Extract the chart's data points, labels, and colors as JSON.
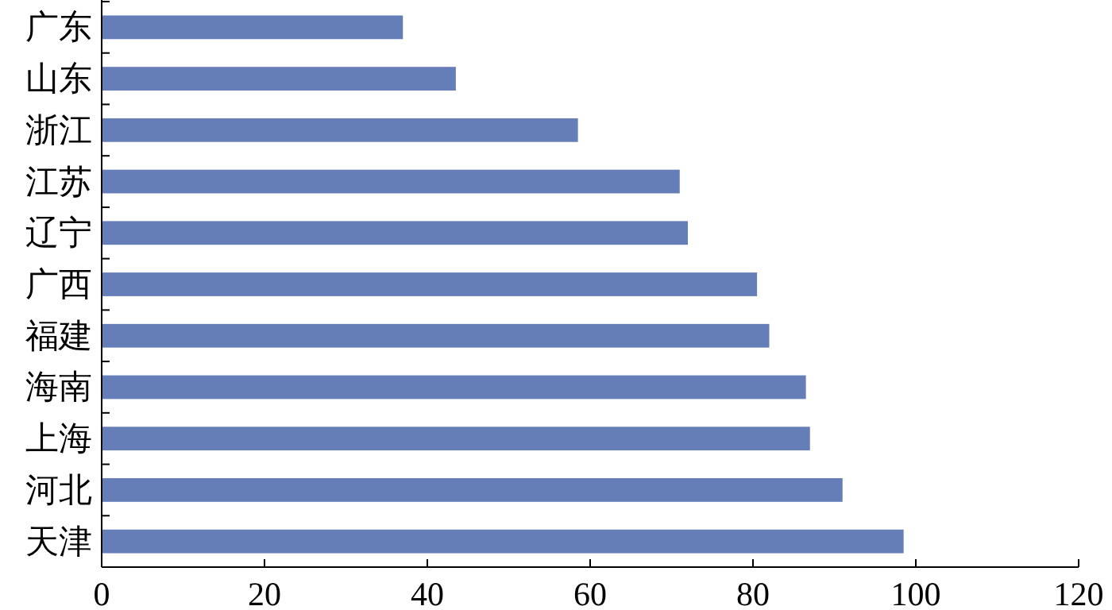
{
  "chart_data": {
    "type": "bar",
    "orientation": "horizontal",
    "categories": [
      "广东",
      "山东",
      "浙江",
      "江苏",
      "辽宁",
      "广西",
      "福建",
      "海南",
      "上海",
      "河北",
      "天津"
    ],
    "values": [
      37,
      43.5,
      58.5,
      71,
      72,
      80.5,
      82,
      86.5,
      87,
      91,
      98.5
    ],
    "color": "#657eb8",
    "xlim": [
      0,
      120
    ],
    "xticks": [
      0,
      20,
      40,
      60,
      80,
      100,
      120
    ]
  }
}
